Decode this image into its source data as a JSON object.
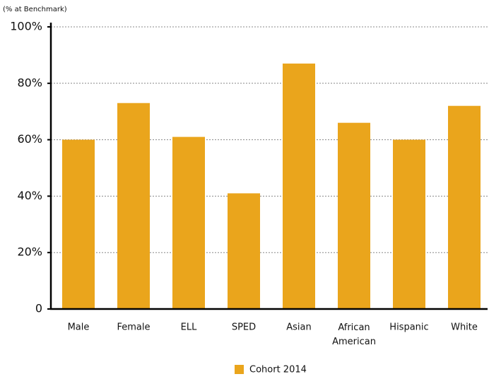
{
  "chart_data": {
    "type": "bar",
    "y_axis_label": "(% at Benchmark)",
    "categories": [
      "Male",
      "Female",
      "ELL",
      "SPED",
      "Asian",
      "African American",
      "Hispanic",
      "White"
    ],
    "series": [
      {
        "name": "Cohort 2014",
        "color": "#eaa51c",
        "values": [
          60,
          73,
          61,
          41,
          87,
          66,
          60,
          72
        ]
      }
    ],
    "ylim": [
      0,
      100
    ],
    "yticks": [
      0,
      {
        "value": 20,
        "label": "20%"
      },
      {
        "value": 40,
        "label": "40%"
      },
      {
        "value": 60,
        "label": "60%"
      },
      {
        "value": 80,
        "label": "80%"
      },
      {
        "value": 100,
        "label": "100%"
      }
    ],
    "grid": true,
    "legend": "bottom"
  }
}
